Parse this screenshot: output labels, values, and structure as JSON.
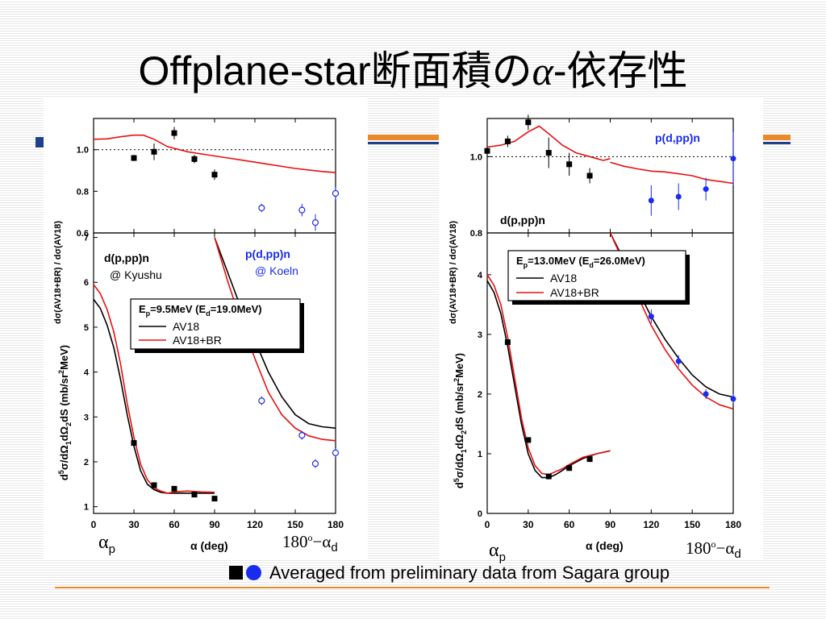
{
  "slide": {
    "title_prefix": "Offplane-star断面積の",
    "title_greek": "α",
    "title_suffix": "-依存性",
    "footer_text": "Averaged from preliminary data from Sagara group",
    "alpha_p_sym": "α",
    "alpha_p_sub": "p",
    "deg_prefix": "180",
    "deg_sup": "o",
    "deg_mid": "−α",
    "deg_sub": "d"
  },
  "colors": {
    "black": "#000000",
    "red": "#e81010",
    "blue": "#1a2bf0",
    "orange": "#e8892a"
  },
  "chart_data": [
    {
      "type": "scatter",
      "panel": "left",
      "xlabel": "α  (deg)",
      "xlim": [
        0,
        180
      ],
      "xticks": [
        "0",
        "30",
        "60",
        "90",
        "120",
        "150",
        "180"
      ],
      "legend": {
        "energy_text": "E p=9.5MeV  (E d=19.0MeV)",
        "energy_parts": [
          "E",
          "p",
          "=9.5MeV  (E",
          "d",
          "=19.0MeV)"
        ],
        "entries": [
          "AV18",
          "AV18+BR"
        ]
      },
      "labels": {
        "kyushu_line1": "d(p,pp)n",
        "kyushu_line2": "@ Kyushu",
        "koeln_line1": "p(d,pp)n",
        "koeln_line2": "@ Koeln"
      },
      "ratio": {
        "ylabel": "dσ(AV18+BR) / dσ(AV18)",
        "ylim": [
          0.6,
          1.15
        ],
        "yticks": [
          "0.6",
          "0.8",
          "1.0"
        ],
        "reference_line": 1.0,
        "kyushu": {
          "x": [
            30,
            45,
            60,
            75,
            90
          ],
          "y": [
            0.96,
            0.99,
            1.08,
            0.955,
            0.88
          ],
          "err": [
            0.015,
            0.04,
            0.03,
            0.02,
            0.025
          ]
        },
        "koeln": {
          "x": [
            125,
            155,
            165,
            180
          ],
          "y": [
            0.72,
            0.71,
            0.65,
            0.79
          ],
          "err": [
            0.02,
            0.03,
            0.04,
            0.03
          ]
        },
        "curve_br": {
          "x": [
            0,
            10,
            20,
            30,
            37,
            45,
            55,
            70,
            90,
            110,
            130,
            150,
            170,
            180
          ],
          "y": [
            1.05,
            1.052,
            1.062,
            1.07,
            1.07,
            1.05,
            1.015,
            0.99,
            0.97,
            0.95,
            0.93,
            0.91,
            0.895,
            0.89
          ]
        }
      },
      "cross_section": {
        "ylabel": "d5σ/dΩ1dΩ2dS  (mb/sr2MeV)",
        "ylim": [
          0.85,
          7.1
        ],
        "yticks": [
          "1",
          "2",
          "3",
          "4",
          "5",
          "6",
          "7"
        ],
        "kyushu": {
          "x": [
            30,
            45,
            60,
            75,
            90
          ],
          "y": [
            2.42,
            1.48,
            1.4,
            1.27,
            1.18
          ]
        },
        "koeln": {
          "x": [
            125,
            155,
            165,
            180
          ],
          "y": [
            3.36,
            2.59,
            1.96,
            2.2
          ],
          "err": [
            0.1,
            0.1,
            0.1,
            0.1
          ]
        },
        "curve_av18_low": {
          "x": [
            0,
            5,
            10,
            15,
            20,
            25,
            30,
            35,
            40,
            45,
            50,
            55,
            60,
            70,
            80,
            90
          ],
          "y": [
            5.62,
            5.42,
            5.05,
            4.55,
            3.85,
            3.05,
            2.35,
            1.8,
            1.5,
            1.38,
            1.32,
            1.3,
            1.3,
            1.3,
            1.3,
            1.3
          ]
        },
        "curve_br_low": {
          "x": [
            0,
            5,
            10,
            15,
            20,
            25,
            30,
            35,
            40,
            45,
            50,
            55,
            60,
            70,
            80,
            90
          ],
          "y": [
            5.95,
            5.75,
            5.4,
            4.9,
            4.2,
            3.3,
            2.55,
            1.95,
            1.6,
            1.42,
            1.35,
            1.3,
            1.33,
            1.35,
            1.33,
            1.32
          ]
        },
        "curve_av18_high": {
          "x": [
            90,
            100,
            110,
            120,
            130,
            140,
            150,
            160,
            170,
            180
          ],
          "y": [
            7.0,
            6.2,
            5.4,
            4.7,
            4.0,
            3.45,
            3.05,
            2.85,
            2.78,
            2.75
          ]
        },
        "curve_br_high": {
          "x": [
            90,
            100,
            110,
            120,
            130,
            140,
            150,
            160,
            170,
            180
          ],
          "y": [
            7.0,
            6.0,
            5.1,
            4.3,
            3.55,
            3.05,
            2.75,
            2.58,
            2.5,
            2.47
          ]
        }
      }
    },
    {
      "type": "scatter",
      "panel": "right",
      "xlabel": "α  (deg)",
      "xlim": [
        0,
        180
      ],
      "xticks": [
        "0",
        "30",
        "60",
        "90",
        "120",
        "150",
        "180"
      ],
      "legend": {
        "energy_text": "E p=13.0MeV  (E d=26.0MeV)",
        "energy_parts": [
          "E",
          "p",
          "=13.0MeV  (E",
          "d",
          "=26.0MeV)"
        ],
        "entries": [
          "AV18",
          "AV18+BR"
        ]
      },
      "labels": {
        "blue_label": "p(d,pp)n",
        "black_label": "d(p,pp)n"
      },
      "ratio": {
        "ylabel": "dσ(AV18+BR) / dσ(AV18)",
        "ylim": [
          0.8,
          1.1
        ],
        "yticks": [
          "0.8",
          "1.0"
        ],
        "reference_line": 1.0,
        "black_points": {
          "x": [
            0,
            15,
            30,
            45,
            60,
            75
          ],
          "y": [
            1.015,
            1.04,
            1.09,
            1.01,
            0.98,
            0.95
          ],
          "err": [
            0.01,
            0.015,
            0.02,
            0.04,
            0.03,
            0.02
          ]
        },
        "blue_points": {
          "x": [
            120,
            140,
            160,
            180
          ],
          "y": [
            0.885,
            0.895,
            0.915,
            0.995
          ],
          "err": [
            0.04,
            0.035,
            0.03,
            0.07
          ]
        },
        "curve_br_a": {
          "x": [
            0,
            10,
            20,
            30,
            38,
            45,
            55,
            65,
            75,
            80,
            85,
            90
          ],
          "y": [
            1.025,
            1.03,
            1.04,
            1.065,
            1.08,
            1.06,
            1.03,
            1.01,
            1.0,
            0.995,
            0.99,
            0.995
          ]
        },
        "curve_br_b": {
          "x": [
            90,
            100,
            110,
            120,
            130,
            140,
            150,
            160,
            170,
            180
          ],
          "y": [
            0.985,
            0.975,
            0.968,
            0.962,
            0.96,
            0.955,
            0.95,
            0.94,
            0.935,
            0.93
          ]
        }
      },
      "cross_section": {
        "ylabel": "d5σ/dΩ1dΩ2dS  (mb/sr2MeV)",
        "ylim": [
          0,
          4.7
        ],
        "yticks": [
          "0",
          "1",
          "2",
          "3",
          "4"
        ],
        "black_points": {
          "x": [
            15,
            30,
            45,
            60,
            75
          ],
          "y": [
            2.87,
            1.23,
            0.62,
            0.76,
            0.91
          ]
        },
        "blue_points": {
          "x": [
            120,
            140,
            160,
            180
          ],
          "y": [
            3.3,
            2.55,
            2.0,
            1.92
          ],
          "err": [
            0.12,
            0.1,
            0.08,
            0.08
          ]
        },
        "curve_av18_low": {
          "x": [
            0,
            5,
            10,
            15,
            20,
            25,
            30,
            35,
            40,
            45,
            50,
            55,
            60,
            70,
            80,
            90
          ],
          "y": [
            3.9,
            3.7,
            3.35,
            2.8,
            2.15,
            1.5,
            1.0,
            0.72,
            0.6,
            0.6,
            0.65,
            0.72,
            0.8,
            0.92,
            1.0,
            1.05
          ]
        },
        "curve_br_low": {
          "x": [
            0,
            5,
            10,
            15,
            20,
            25,
            30,
            35,
            40,
            45,
            50,
            55,
            60,
            70,
            80,
            90
          ],
          "y": [
            4.0,
            3.82,
            3.5,
            2.95,
            2.28,
            1.6,
            1.1,
            0.8,
            0.67,
            0.65,
            0.7,
            0.75,
            0.82,
            0.94,
            1.0,
            1.05
          ]
        },
        "curve_av18_high": {
          "x": [
            90,
            100,
            110,
            120,
            130,
            140,
            150,
            160,
            170,
            180
          ],
          "y": [
            4.7,
            4.25,
            3.75,
            3.3,
            2.92,
            2.6,
            2.32,
            2.12,
            2.0,
            1.95
          ]
        },
        "curve_br_high": {
          "x": [
            90,
            100,
            110,
            120,
            130,
            140,
            150,
            160,
            170,
            180
          ],
          "y": [
            4.7,
            4.2,
            3.65,
            3.15,
            2.75,
            2.42,
            2.15,
            1.95,
            1.82,
            1.75
          ]
        }
      }
    }
  ]
}
